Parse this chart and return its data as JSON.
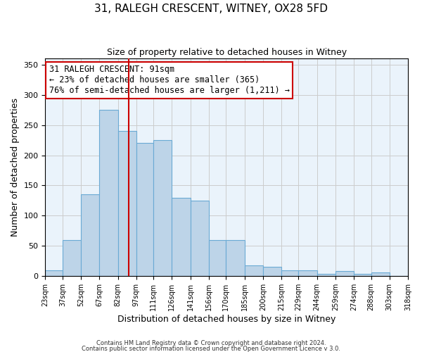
{
  "title": "31, RALEGH CRESCENT, WITNEY, OX28 5FD",
  "subtitle": "Size of property relative to detached houses in Witney",
  "xlabel": "Distribution of detached houses by size in Witney",
  "ylabel": "Number of detached properties",
  "bar_edges": [
    23,
    37,
    52,
    67,
    82,
    97,
    111,
    126,
    141,
    156,
    170,
    185,
    200,
    215,
    229,
    244,
    259,
    274,
    288,
    303,
    318
  ],
  "bar_heights": [
    10,
    60,
    135,
    275,
    240,
    220,
    225,
    130,
    125,
    60,
    60,
    18,
    16,
    10,
    10,
    4,
    8,
    4,
    6,
    0
  ],
  "bar_color": "#bdd4e8",
  "bar_edgecolor": "#6aaad4",
  "vline_x": 91,
  "vline_color": "#cc0000",
  "ylim": [
    0,
    360
  ],
  "yticks": [
    0,
    50,
    100,
    150,
    200,
    250,
    300,
    350
  ],
  "annotation_line1": "31 RALEGH CRESCENT: 91sqm",
  "annotation_line2": "← 23% of detached houses are smaller (365)",
  "annotation_line3": "76% of semi-detached houses are larger (1,211) →",
  "annotation_box_edgecolor": "#cc0000",
  "footer1": "Contains HM Land Registry data © Crown copyright and database right 2024.",
  "footer2": "Contains public sector information licensed under the Open Government Licence v 3.0.",
  "background_color": "#ffffff",
  "ax_facecolor": "#eaf3fb",
  "grid_color": "#cccccc"
}
